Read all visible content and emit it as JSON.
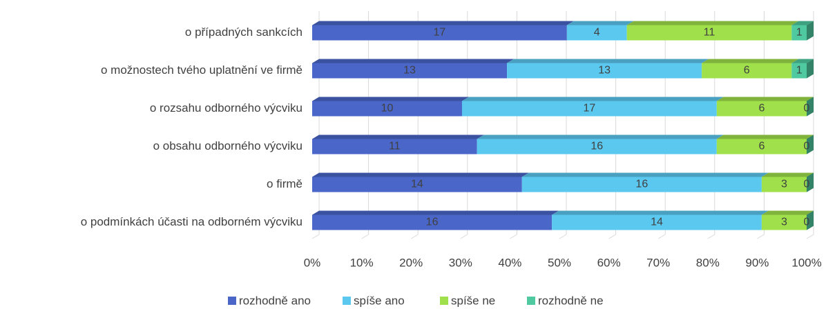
{
  "chart_data": {
    "type": "bar",
    "orientation": "horizontal",
    "stacking": "percent",
    "categories": [
      "o případných sankcích",
      "o možnostech tvého uplatnění ve firmě",
      "o rozsahu odborného výcviku",
      "o obsahu odborného výcviku",
      "o firmě",
      "o podmínkách účasti na odborném výcviku"
    ],
    "series": [
      {
        "name": "rozhodně ano",
        "color": "#4a66c8",
        "values": [
          17,
          13,
          10,
          11,
          14,
          16
        ]
      },
      {
        "name": "spíše ano",
        "color": "#5bc8f0",
        "values": [
          4,
          13,
          17,
          16,
          16,
          14
        ]
      },
      {
        "name": "spíše ne",
        "color": "#a0e04a",
        "values": [
          11,
          6,
          6,
          6,
          3,
          3
        ]
      },
      {
        "name": "rozhodně ne",
        "color": "#4ec9a0",
        "values": [
          1,
          1,
          0,
          0,
          0,
          0
        ]
      }
    ],
    "xlim": [
      0,
      100
    ],
    "xticks": [
      {
        "value": 0,
        "label": "0%"
      },
      {
        "value": 10,
        "label": "10%"
      },
      {
        "value": 20,
        "label": "20%"
      },
      {
        "value": 30,
        "label": "30%"
      },
      {
        "value": 40,
        "label": "40%"
      },
      {
        "value": 50,
        "label": "50%"
      },
      {
        "value": 60,
        "label": "60%"
      },
      {
        "value": 70,
        "label": "70%"
      },
      {
        "value": 80,
        "label": "80%"
      },
      {
        "value": 90,
        "label": "90%"
      },
      {
        "value": 100,
        "label": "100%"
      }
    ],
    "grid": true,
    "legend": "bottom"
  }
}
